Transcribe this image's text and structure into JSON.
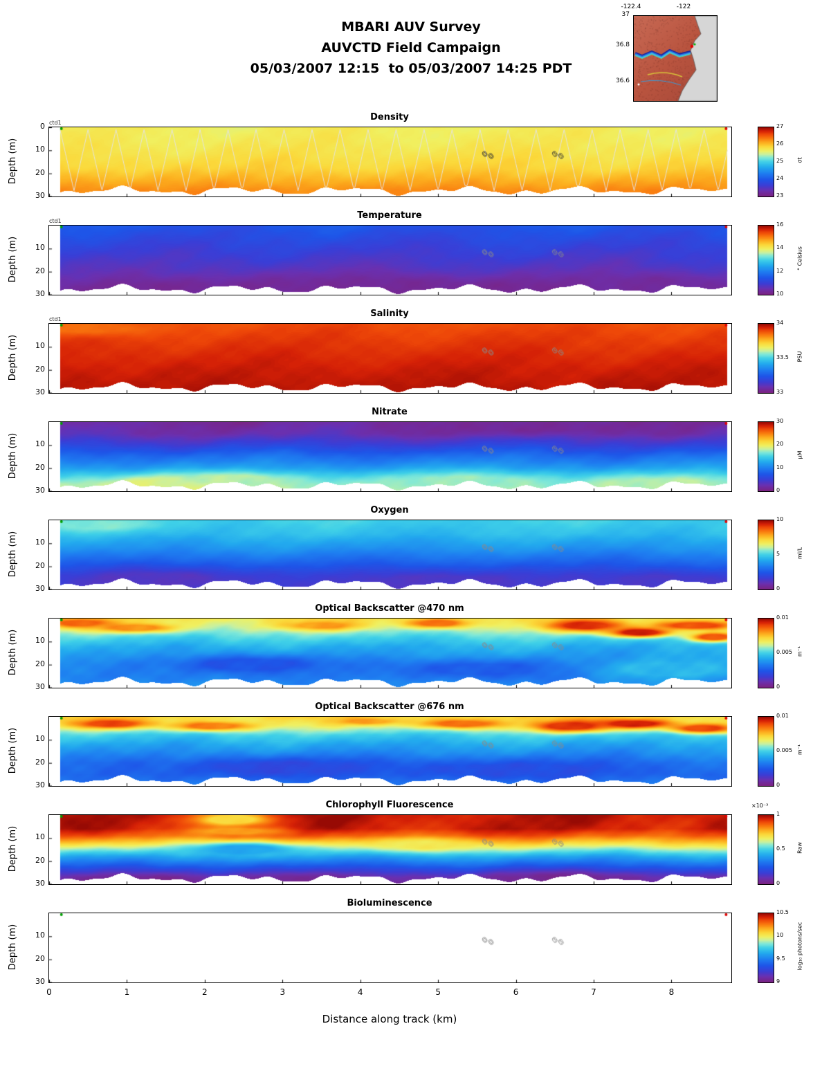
{
  "header": {
    "line1": "MBARI AUV Survey",
    "line2": "AUVCTD Field Campaign",
    "line3": "05/03/2007 12:15  to 05/03/2007 14:25 PDT"
  },
  "map": {
    "lon_labels": [
      "-122.4",
      "-122"
    ],
    "lat_labels": [
      "37",
      "36.8",
      "36.6"
    ]
  },
  "axes": {
    "ylabel": "Depth (m)",
    "xlabel": "Distance along track (km)",
    "x_ticks": [
      "0",
      "1",
      "2",
      "3",
      "4",
      "5",
      "6",
      "7",
      "8"
    ],
    "x_axis_max_km": 8.77,
    "x_data_min_km": 0.14,
    "x_data_max_km": 8.72,
    "depth_max_m": 30
  },
  "annotations": {
    "ctd_label": "ctd1",
    "markers": [
      {
        "x_km": 5.6,
        "depth_m": 12,
        "digits": [
          "0",
          "0"
        ]
      },
      {
        "x_km": 6.5,
        "depth_m": 12,
        "digits": [
          "3",
          "3"
        ]
      }
    ],
    "track_start_color": "#00a000",
    "track_end_color": "#e00000"
  },
  "colormap": [
    [
      0.0,
      "#7b2382"
    ],
    [
      0.08,
      "#6a30b0"
    ],
    [
      0.16,
      "#3a3ed6"
    ],
    [
      0.24,
      "#1e55e8"
    ],
    [
      0.33,
      "#1e7df0"
    ],
    [
      0.42,
      "#22a9ee"
    ],
    [
      0.5,
      "#3fd0e8"
    ],
    [
      0.56,
      "#7fe8d8"
    ],
    [
      0.61,
      "#c8f0a0"
    ],
    [
      0.66,
      "#f0f060"
    ],
    [
      0.72,
      "#fbd83a"
    ],
    [
      0.78,
      "#fcae1e"
    ],
    [
      0.84,
      "#f97b0f"
    ],
    [
      0.9,
      "#ef4a08"
    ],
    [
      0.95,
      "#d42006"
    ],
    [
      1.0,
      "#970a04"
    ]
  ],
  "chart_data": [
    {
      "type": "heatmap",
      "title": "Density",
      "y_ticks": [
        {
          "label": "0",
          "d": 0
        },
        {
          "label": "10",
          "d": 10
        },
        {
          "label": "20",
          "d": 20
        },
        {
          "label": "30",
          "d": 30
        }
      ],
      "colorbar": {
        "min": 23,
        "max": 27,
        "unit": "σt",
        "scale_note": "",
        "ticks": [
          {
            "label": "27",
            "f": 1
          },
          {
            "label": "26",
            "f": 0.75
          },
          {
            "label": "25",
            "f": 0.5
          },
          {
            "label": "24",
            "f": 0.25
          },
          {
            "label": "23",
            "f": 0
          }
        ]
      },
      "approx_profile": {
        "depths_m": [
          0,
          10,
          20,
          30
        ],
        "values": [
          25.7,
          25.8,
          26.0,
          26.3
        ]
      },
      "render": {
        "profile": [
          [
            0,
            0.67
          ],
          [
            6,
            0.68
          ],
          [
            12,
            0.7
          ],
          [
            18,
            0.73
          ],
          [
            23,
            0.78
          ],
          [
            27,
            0.82
          ],
          [
            30,
            0.83
          ]
        ],
        "wiggle": 0.012,
        "noise": 0.01,
        "overlay": "sawtooth",
        "patches": []
      }
    },
    {
      "type": "heatmap",
      "title": "Temperature",
      "y_ticks": [
        {
          "label": "10",
          "d": 10
        },
        {
          "label": "20",
          "d": 20
        },
        {
          "label": "30",
          "d": 30
        }
      ],
      "colorbar": {
        "min": 10,
        "max": 16,
        "unit": "° Celsius",
        "scale_note": "",
        "ticks": [
          {
            "label": "16",
            "f": 1
          },
          {
            "label": "14",
            "f": 0.667
          },
          {
            "label": "12",
            "f": 0.333
          },
          {
            "label": "10",
            "f": 0
          }
        ]
      },
      "approx_profile": {
        "depths_m": [
          0,
          10,
          20,
          30
        ],
        "values": [
          11.4,
          11.0,
          10.7,
          10.3
        ]
      },
      "render": {
        "profile": [
          [
            0,
            0.24
          ],
          [
            6,
            0.2
          ],
          [
            12,
            0.16
          ],
          [
            18,
            0.12
          ],
          [
            24,
            0.08
          ],
          [
            30,
            0.05
          ]
        ],
        "wiggle": 0.018,
        "noise": 0.012,
        "patches": [
          {
            "x": 1.3,
            "y": 28,
            "rx": 0.9,
            "ry": 4,
            "t": 0.03
          },
          {
            "x": 2.9,
            "y": 29,
            "rx": 1.4,
            "ry": 6,
            "t": 0.04
          },
          {
            "x": 4.4,
            "y": 27,
            "rx": 1.2,
            "ry": 5,
            "t": 0.04
          },
          {
            "x": 6.0,
            "y": 28,
            "rx": 0.8,
            "ry": 4,
            "t": 0.03
          },
          {
            "x": 7.7,
            "y": 26,
            "rx": 1.0,
            "ry": 5,
            "t": 0.05
          }
        ]
      }
    },
    {
      "type": "heatmap",
      "title": "Salinity",
      "y_ticks": [
        {
          "label": "10",
          "d": 10
        },
        {
          "label": "20",
          "d": 20
        },
        {
          "label": "30",
          "d": 30
        }
      ],
      "colorbar": {
        "min": 33,
        "max": 34,
        "unit": "PSU",
        "scale_note": "",
        "ticks": [
          {
            "label": "34",
            "f": 1
          },
          {
            "label": "33.5",
            "f": 0.5
          },
          {
            "label": "33",
            "f": 0
          }
        ]
      },
      "approx_profile": {
        "depths_m": [
          0,
          10,
          20,
          30
        ],
        "values": [
          33.9,
          33.93,
          33.96,
          33.98
        ]
      },
      "render": {
        "profile": [
          [
            0,
            0.9
          ],
          [
            10,
            0.93
          ],
          [
            20,
            0.96
          ],
          [
            30,
            0.98
          ]
        ],
        "wiggle": 0.008,
        "noise": 0.008,
        "patches": [
          {
            "x": 0.5,
            "y": 2,
            "rx": 0.8,
            "ry": 3,
            "t": 0.86
          }
        ]
      }
    },
    {
      "type": "heatmap",
      "title": "Nitrate",
      "y_ticks": [
        {
          "label": "10",
          "d": 10
        },
        {
          "label": "20",
          "d": 20
        },
        {
          "label": "30",
          "d": 30
        }
      ],
      "colorbar": {
        "min": 0,
        "max": 30,
        "unit": "μM",
        "scale_note": "",
        "ticks": [
          {
            "label": "30",
            "f": 1
          },
          {
            "label": "20",
            "f": 0.667
          },
          {
            "label": "10",
            "f": 0.333
          },
          {
            "label": "0",
            "f": 0
          }
        ]
      },
      "approx_profile": {
        "depths_m": [
          0,
          10,
          20,
          30
        ],
        "values": [
          1.5,
          5.5,
          12,
          18.5
        ]
      },
      "render": {
        "profile": [
          [
            0,
            0.05
          ],
          [
            5,
            0.08
          ],
          [
            10,
            0.18
          ],
          [
            15,
            0.3
          ],
          [
            20,
            0.4
          ],
          [
            24,
            0.5
          ],
          [
            27,
            0.58
          ],
          [
            30,
            0.62
          ]
        ],
        "wiggle": 0.02,
        "noise": 0.015,
        "patches": [
          {
            "x": 1.6,
            "y": 27,
            "rx": 1.0,
            "ry": 4,
            "t": 0.64
          },
          {
            "x": 2.4,
            "y": 25,
            "rx": 0.8,
            "ry": 3,
            "t": 0.6
          },
          {
            "x": 5.3,
            "y": 26,
            "rx": 1.2,
            "ry": 4,
            "t": 0.58
          },
          {
            "x": 7.9,
            "y": 27,
            "rx": 0.9,
            "ry": 4,
            "t": 0.6
          },
          {
            "x": 6.2,
            "y": 2,
            "rx": 1.5,
            "ry": 3,
            "t": 0.04
          }
        ]
      }
    },
    {
      "type": "heatmap",
      "title": "Oxygen",
      "y_ticks": [
        {
          "label": "10",
          "d": 10
        },
        {
          "label": "20",
          "d": 20
        },
        {
          "label": "30",
          "d": 30
        }
      ],
      "colorbar": {
        "min": 0,
        "max": 10,
        "unit": "ml/L",
        "scale_note": "",
        "ticks": [
          {
            "label": "10",
            "f": 1
          },
          {
            "label": "5",
            "f": 0.5
          },
          {
            "label": "0",
            "f": 0
          }
        ]
      },
      "approx_profile": {
        "depths_m": [
          0,
          10,
          20,
          30
        ],
        "values": [
          5.0,
          4.0,
          2.6,
          1.6
        ]
      },
      "render": {
        "profile": [
          [
            0,
            0.5
          ],
          [
            6,
            0.46
          ],
          [
            12,
            0.38
          ],
          [
            18,
            0.28
          ],
          [
            24,
            0.2
          ],
          [
            30,
            0.16
          ]
        ],
        "wiggle": 0.015,
        "noise": 0.012,
        "patches": [
          {
            "x": 1.4,
            "y": 26,
            "rx": 1.2,
            "ry": 5,
            "t": 0.12
          },
          {
            "x": 5.0,
            "y": 27,
            "rx": 1.5,
            "ry": 5,
            "t": 0.13
          },
          {
            "x": 0.6,
            "y": 2,
            "rx": 0.8,
            "ry": 3,
            "t": 0.56
          },
          {
            "x": 7.8,
            "y": 27,
            "rx": 1.2,
            "ry": 5,
            "t": 0.14
          }
        ]
      }
    },
    {
      "type": "heatmap",
      "title": "Optical Backscatter @470 nm",
      "y_ticks": [
        {
          "label": "10",
          "d": 10
        },
        {
          "label": "20",
          "d": 20
        },
        {
          "label": "30",
          "d": 30
        }
      ],
      "colorbar": {
        "min": 0,
        "max": 0.01,
        "unit": "m⁻¹",
        "scale_note": "",
        "ticks": [
          {
            "label": "0.01",
            "f": 1
          },
          {
            "label": "0.005",
            "f": 0.5
          },
          {
            "label": "0",
            "f": 0
          }
        ]
      },
      "approx_profile": {
        "depths_m": [
          0,
          10,
          20,
          30
        ],
        "values": [
          0.007,
          0.0047,
          0.0036,
          0.0036
        ]
      },
      "render": {
        "profile": [
          [
            0,
            0.7
          ],
          [
            4,
            0.62
          ],
          [
            8,
            0.52
          ],
          [
            12,
            0.44
          ],
          [
            16,
            0.4
          ],
          [
            20,
            0.36
          ],
          [
            25,
            0.34
          ],
          [
            30,
            0.36
          ]
        ],
        "wiggle": 0.02,
        "noise": 0.02,
        "patches": [
          {
            "x": 0.4,
            "y": 2,
            "rx": 0.4,
            "ry": 2,
            "t": 0.88
          },
          {
            "x": 1.1,
            "y": 4,
            "rx": 0.5,
            "ry": 2,
            "t": 0.82
          },
          {
            "x": 3.5,
            "y": 3,
            "rx": 0.5,
            "ry": 2,
            "t": 0.8
          },
          {
            "x": 5.0,
            "y": 2,
            "rx": 0.4,
            "ry": 2,
            "t": 0.85
          },
          {
            "x": 6.9,
            "y": 3,
            "rx": 0.5,
            "ry": 2.5,
            "t": 0.93
          },
          {
            "x": 7.6,
            "y": 6,
            "rx": 0.4,
            "ry": 2,
            "t": 0.95
          },
          {
            "x": 8.3,
            "y": 3,
            "rx": 0.5,
            "ry": 2,
            "t": 0.9
          },
          {
            "x": 8.55,
            "y": 8,
            "rx": 0.3,
            "ry": 2,
            "t": 0.88
          },
          {
            "x": 2.6,
            "y": 20,
            "rx": 1.0,
            "ry": 4,
            "t": 0.24
          },
          {
            "x": 5.6,
            "y": 22,
            "rx": 1.2,
            "ry": 4,
            "t": 0.26
          },
          {
            "x": 8.0,
            "y": 22,
            "rx": 1.0,
            "ry": 5,
            "t": 0.45
          }
        ]
      }
    },
    {
      "type": "heatmap",
      "title": "Optical Backscatter @676 nm",
      "y_ticks": [
        {
          "label": "10",
          "d": 10
        },
        {
          "label": "20",
          "d": 20
        },
        {
          "label": "30",
          "d": 30
        }
      ],
      "colorbar": {
        "min": 0,
        "max": 0.01,
        "unit": "m⁻¹",
        "scale_note": "",
        "ticks": [
          {
            "label": "0.01",
            "f": 1
          },
          {
            "label": "0.005",
            "f": 0.5
          },
          {
            "label": "0",
            "f": 0
          }
        ]
      },
      "approx_profile": {
        "depths_m": [
          0,
          10,
          20,
          30
        ],
        "values": [
          0.0072,
          0.0045,
          0.003,
          0.0032
        ]
      },
      "render": {
        "profile": [
          [
            0,
            0.72
          ],
          [
            4,
            0.64
          ],
          [
            8,
            0.5
          ],
          [
            12,
            0.42
          ],
          [
            16,
            0.36
          ],
          [
            20,
            0.3
          ],
          [
            25,
            0.28
          ],
          [
            30,
            0.32
          ]
        ],
        "wiggle": 0.02,
        "noise": 0.02,
        "patches": [
          {
            "x": 0.8,
            "y": 3,
            "rx": 0.5,
            "ry": 2,
            "t": 0.9
          },
          {
            "x": 2.1,
            "y": 4,
            "rx": 0.5,
            "ry": 2,
            "t": 0.84
          },
          {
            "x": 4.1,
            "y": 2,
            "rx": 0.4,
            "ry": 1.5,
            "t": 0.8
          },
          {
            "x": 5.3,
            "y": 3,
            "rx": 0.5,
            "ry": 2,
            "t": 0.86
          },
          {
            "x": 6.7,
            "y": 4,
            "rx": 0.5,
            "ry": 2.5,
            "t": 0.92
          },
          {
            "x": 7.5,
            "y": 3,
            "rx": 0.5,
            "ry": 2,
            "t": 0.95
          },
          {
            "x": 8.4,
            "y": 5,
            "rx": 0.4,
            "ry": 2,
            "t": 0.9
          },
          {
            "x": 3.0,
            "y": 22,
            "rx": 1.2,
            "ry": 4,
            "t": 0.2
          },
          {
            "x": 6.0,
            "y": 23,
            "rx": 1.5,
            "ry": 4,
            "t": 0.22
          }
        ]
      }
    },
    {
      "type": "heatmap",
      "title": "Chlorophyll Fluorescence",
      "y_ticks": [
        {
          "label": "10",
          "d": 10
        },
        {
          "label": "20",
          "d": 20
        },
        {
          "label": "30",
          "d": 30
        }
      ],
      "colorbar": {
        "min": 0,
        "max": 1,
        "unit": "Raw",
        "scale_note": "×10⁻³",
        "ticks": [
          {
            "label": "1",
            "f": 1
          },
          {
            "label": "0.5",
            "f": 0.5
          },
          {
            "label": "0",
            "f": 0
          }
        ]
      },
      "approx_profile": {
        "depths_m": [
          0,
          10,
          20,
          30
        ],
        "values": [
          0.97,
          0.8,
          0.36,
          0.04
        ]
      },
      "render": {
        "profile": [
          [
            0,
            0.97
          ],
          [
            6,
            0.96
          ],
          [
            9,
            0.88
          ],
          [
            12,
            0.74
          ],
          [
            15,
            0.58
          ],
          [
            18,
            0.42
          ],
          [
            21,
            0.3
          ],
          [
            24,
            0.18
          ],
          [
            27,
            0.08
          ],
          [
            30,
            0.04
          ]
        ],
        "wiggle": 0.025,
        "noise": 0.015,
        "patches": [
          {
            "x": 2.35,
            "y": 2,
            "rx": 0.5,
            "ry": 3,
            "t": 0.72
          },
          {
            "x": 2.4,
            "y": 7,
            "rx": 0.6,
            "ry": 2,
            "t": 0.8
          },
          {
            "x": 2.5,
            "y": 15,
            "rx": 0.7,
            "ry": 3,
            "t": 0.42
          },
          {
            "x": 4.8,
            "y": 13,
            "rx": 0.6,
            "ry": 2.5,
            "t": 0.68
          },
          {
            "x": 1.2,
            "y": 29,
            "rx": 0.8,
            "ry": 3,
            "t": 0.02
          },
          {
            "x": 3.3,
            "y": 29,
            "rx": 0.8,
            "ry": 3,
            "t": 0.03
          },
          {
            "x": 6.6,
            "y": 28,
            "rx": 1.0,
            "ry": 3,
            "t": 0.03
          }
        ]
      }
    },
    {
      "type": "heatmap",
      "title": "Bioluminescence",
      "y_ticks": [
        {
          "label": "10",
          "d": 10
        },
        {
          "label": "20",
          "d": 20
        },
        {
          "label": "30",
          "d": 30
        }
      ],
      "colorbar": {
        "min": 9,
        "max": 10.5,
        "unit": "log₁₀ photons/sec",
        "scale_note": "",
        "ticks": [
          {
            "label": "10.5",
            "f": 1
          },
          {
            "label": "10",
            "f": 0.667
          },
          {
            "label": "9.5",
            "f": 0.333
          },
          {
            "label": "9",
            "f": 0
          }
        ]
      },
      "approx_profile": {
        "depths_m": [],
        "values": [],
        "note": "no data rendered in section"
      },
      "render": {
        "empty": true
      }
    }
  ]
}
